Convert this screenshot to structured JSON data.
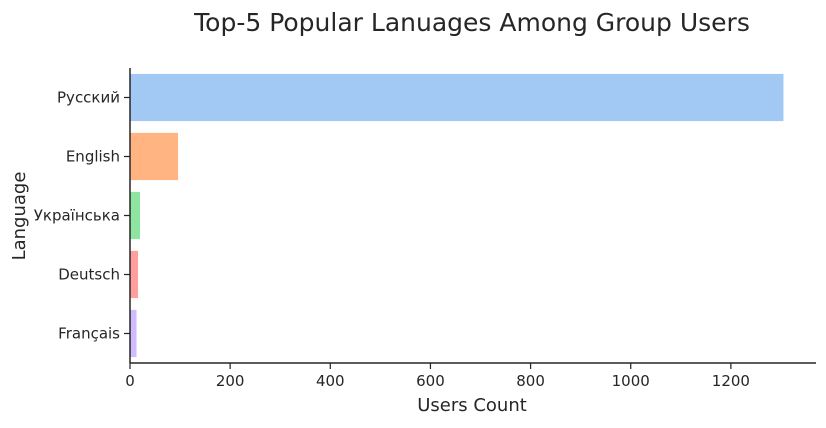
{
  "chart_data": {
    "type": "bar",
    "orientation": "horizontal",
    "title": "Top-5 Popular Lanuages Among Group Users",
    "xlabel": "Users Count",
    "ylabel": "Language",
    "categories": [
      "Русский",
      "English",
      "Українська",
      "Deutsch",
      "Français"
    ],
    "values": [
      1305,
      96,
      20,
      16,
      13
    ],
    "colors": [
      "#a1c9f4",
      "#ffb482",
      "#8de5a1",
      "#ff9f9b",
      "#d0bbff"
    ],
    "xlim": [
      0,
      1370
    ],
    "xticks": [
      0,
      200,
      400,
      600,
      800,
      1000,
      1200
    ],
    "grid": false,
    "legend": "none"
  }
}
